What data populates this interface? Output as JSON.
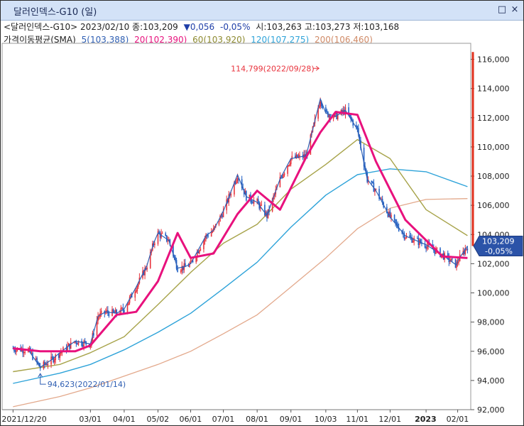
{
  "window": {
    "title": "달러인덱스-G10 (일)",
    "buttons": [
      "□",
      "×"
    ]
  },
  "header": {
    "line1": {
      "name": "<달러인덱스-G10>",
      "date": "2023/02/10",
      "close_label": "종:103,209",
      "change": "▼0,056",
      "change_pct": "-0,05%",
      "open_label": "시:103,263",
      "high_label": "고:103,273",
      "low_label": "저:103,168"
    },
    "line2": {
      "label": "가격이동평균(SMA)",
      "ma5": "5(103,388)",
      "ma20": "20(102,390)",
      "ma60": "60(103,920)",
      "ma120": "120(107,275)",
      "ma200": "200(106,460)"
    }
  },
  "colors": {
    "up": "#e8323c",
    "down": "#1f5fc4",
    "ma5": "#2f5fb3",
    "ma20": "#e8117d",
    "ma60": "#a7a34a",
    "ma120": "#2ea3d9",
    "ma200": "#e3a98c",
    "axis_line": "#e0311e",
    "price_tag_bg": "#2b53a8"
  },
  "chart_data": {
    "type": "candlestick",
    "xlabel": "",
    "ylabel": "",
    "ylim": [
      92000,
      117000
    ],
    "y_ticks": [
      "92,000",
      "94,000",
      "96,000",
      "98,000",
      "100,000",
      "102,000",
      "104,000",
      "106,000",
      "108,000",
      "110,000",
      "112,000",
      "114,000",
      "116,000"
    ],
    "x_ticks": [
      "2021/12/20",
      "03/01",
      "04/01",
      "05/02",
      "06/01",
      "07/01",
      "08/01",
      "09/01",
      "10/03",
      "11/01",
      "12/01",
      "2023",
      "02/01"
    ],
    "annotations": [
      {
        "text": "114,799(2022/09/28)",
        "date": "2022-09-28",
        "value": 114799,
        "type": "high"
      },
      {
        "text": "94,623(2022/01/14)",
        "date": "2022-01-14",
        "value": 94623,
        "type": "low"
      }
    ],
    "last_price": {
      "value_text": "103,209",
      "pct_text": "-0,05%",
      "value": 103209
    },
    "series": [
      {
        "name": "Price",
        "x": [
          "2021-12-20",
          "2022-01-03",
          "2022-01-14",
          "2022-01-24",
          "2022-02-01",
          "2022-02-15",
          "2022-03-01",
          "2022-03-08",
          "2022-03-15",
          "2022-03-25",
          "2022-04-01",
          "2022-04-12",
          "2022-04-22",
          "2022-04-28",
          "2022-05-02",
          "2022-05-12",
          "2022-05-20",
          "2022-05-27",
          "2022-06-01",
          "2022-06-15",
          "2022-06-22",
          "2022-07-01",
          "2022-07-14",
          "2022-07-22",
          "2022-08-01",
          "2022-08-10",
          "2022-08-22",
          "2022-09-01",
          "2022-09-15",
          "2022-09-28",
          "2022-10-03",
          "2022-10-12",
          "2022-10-21",
          "2022-11-01",
          "2022-11-07",
          "2022-11-10",
          "2022-11-18",
          "2022-12-01",
          "2022-12-15",
          "2023-01-03",
          "2023-01-18",
          "2023-01-31",
          "2023-02-01",
          "2023-02-10"
        ],
        "values": [
          96200,
          96100,
          94900,
          95400,
          95900,
          96700,
          96500,
          98400,
          98700,
          98600,
          98900,
          100400,
          101900,
          103400,
          104100,
          103600,
          101700,
          101800,
          102000,
          103900,
          104300,
          105600,
          108100,
          106600,
          106200,
          105300,
          107800,
          109200,
          109400,
          113300,
          112300,
          112100,
          112500,
          111200,
          108900,
          107800,
          107000,
          105200,
          103900,
          103300,
          102600,
          101900,
          102200,
          103209
        ]
      },
      {
        "name": "MA20",
        "x": [
          "2021-12-20",
          "2022-01-14",
          "2022-02-01",
          "2022-02-15",
          "2022-03-01",
          "2022-03-25",
          "2022-04-12",
          "2022-05-02",
          "2022-05-20",
          "2022-06-01",
          "2022-06-22",
          "2022-07-14",
          "2022-08-01",
          "2022-08-22",
          "2022-09-15",
          "2022-09-28",
          "2022-10-12",
          "2022-11-01",
          "2022-11-18",
          "2022-12-15",
          "2023-01-18",
          "2023-02-10"
        ],
        "values": [
          96200,
          96000,
          96000,
          96000,
          96400,
          98500,
          98700,
          100800,
          104100,
          102400,
          102700,
          105400,
          107000,
          105700,
          109300,
          111000,
          112400,
          112200,
          109000,
          105000,
          102500,
          102390
        ]
      },
      {
        "name": "MA60",
        "x": [
          "2021-12-20",
          "2022-02-01",
          "2022-03-01",
          "2022-04-01",
          "2022-05-02",
          "2022-06-01",
          "2022-07-01",
          "2022-08-01",
          "2022-09-01",
          "2022-10-03",
          "2022-11-01",
          "2022-12-01",
          "2023-01-03",
          "2023-02-10"
        ],
        "values": [
          94600,
          95100,
          95900,
          97000,
          99200,
          101400,
          103400,
          104700,
          107100,
          108800,
          110500,
          109200,
          105700,
          103920
        ]
      },
      {
        "name": "MA120",
        "x": [
          "2021-12-20",
          "2022-02-01",
          "2022-03-01",
          "2022-04-01",
          "2022-05-02",
          "2022-06-01",
          "2022-07-01",
          "2022-08-01",
          "2022-09-01",
          "2022-10-03",
          "2022-11-01",
          "2022-12-01",
          "2023-01-03",
          "2023-02-10"
        ],
        "values": [
          93800,
          94500,
          95100,
          96100,
          97300,
          98600,
          100300,
          102100,
          104500,
          106700,
          108100,
          108500,
          108300,
          107275
        ]
      },
      {
        "name": "MA200",
        "x": [
          "2021-12-20",
          "2022-02-01",
          "2022-03-01",
          "2022-04-01",
          "2022-05-02",
          "2022-06-01",
          "2022-07-01",
          "2022-08-01",
          "2022-09-01",
          "2022-10-03",
          "2022-11-01",
          "2022-12-01",
          "2023-01-03",
          "2023-02-10"
        ],
        "values": [
          92200,
          92900,
          93500,
          94300,
          95100,
          96000,
          97200,
          98500,
          100400,
          102400,
          104400,
          105800,
          106400,
          106460
        ]
      }
    ]
  }
}
